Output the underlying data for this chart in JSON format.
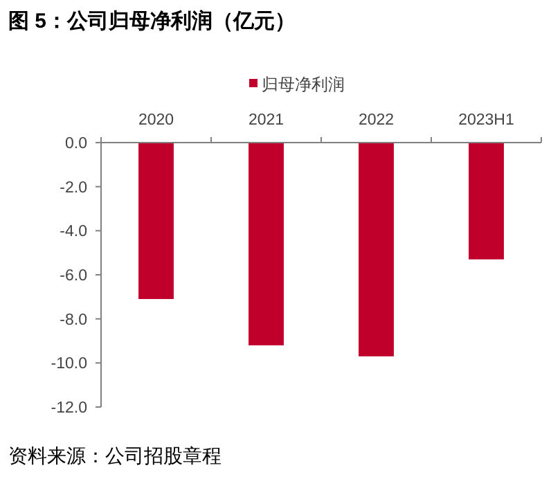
{
  "chart_data": {
    "type": "bar",
    "title": "图 5：公司归母净利润（亿元）",
    "categories": [
      "2020",
      "2021",
      "2022",
      "2023H1"
    ],
    "series": [
      {
        "name": "归母净利润",
        "color": "#c0002b",
        "values": [
          -7.1,
          -9.2,
          -9.7,
          -5.3
        ]
      }
    ],
    "ylim": [
      -12,
      0
    ],
    "yticks": [
      {
        "value": 0,
        "label": "0.0"
      },
      {
        "value": -2,
        "label": "-2.0"
      },
      {
        "value": -4,
        "label": "-4.0"
      },
      {
        "value": -6,
        "label": "-6.0"
      },
      {
        "value": -8,
        "label": "-8.0"
      },
      {
        "value": -10,
        "label": "-10.0"
      },
      {
        "value": -12,
        "label": "-12.0"
      }
    ],
    "legend": "top",
    "grid": false,
    "annotations": [
      "资料来源：公司招股章程"
    ]
  }
}
